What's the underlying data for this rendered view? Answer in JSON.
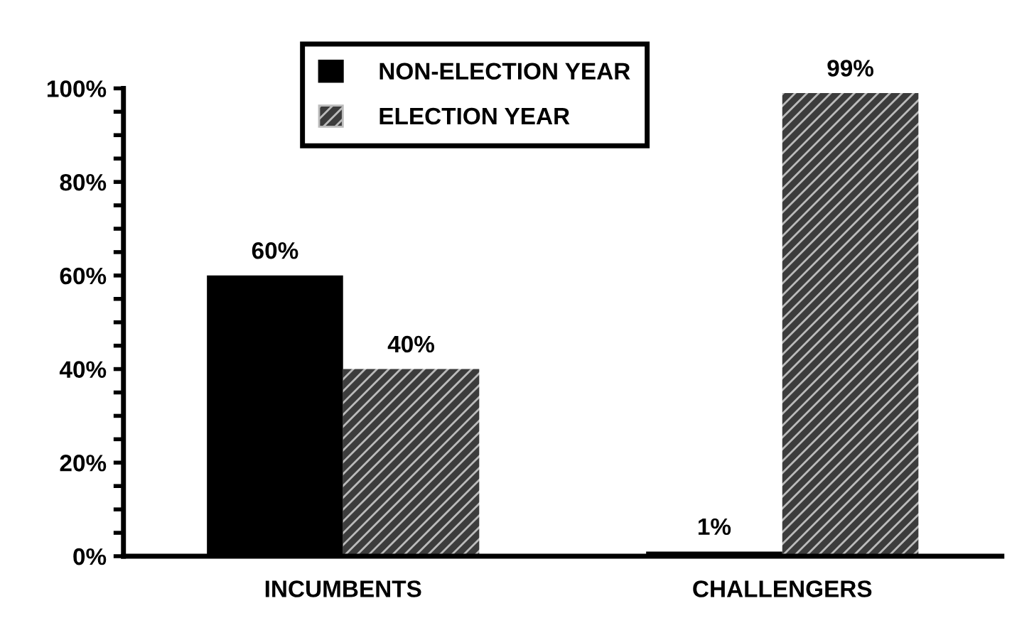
{
  "chart_data": {
    "type": "bar",
    "categories": [
      "INCUMBENTS",
      "CHALLENGERS"
    ],
    "series": [
      {
        "name": "NON-ELECTION YEAR",
        "color": "#000000",
        "values": [
          60,
          1
        ],
        "value_labels": [
          "60%",
          "1%"
        ]
      },
      {
        "name": "ELECTION YEAR",
        "color": "#3c3c3c",
        "values": [
          40,
          99
        ],
        "value_labels": [
          "40%",
          "99%"
        ]
      }
    ],
    "ylim": [
      0,
      100
    ],
    "yticks": [
      {
        "value": 0,
        "label": "0%"
      },
      {
        "value": 5,
        "label": null
      },
      {
        "value": 10,
        "label": null
      },
      {
        "value": 15,
        "label": null
      },
      {
        "value": 20,
        "label": "20%"
      },
      {
        "value": 25,
        "label": null
      },
      {
        "value": 30,
        "label": null
      },
      {
        "value": 35,
        "label": null
      },
      {
        "value": 40,
        "label": "40%"
      },
      {
        "value": 45,
        "label": null
      },
      {
        "value": 50,
        "label": null
      },
      {
        "value": 55,
        "label": null
      },
      {
        "value": 60,
        "label": "60%"
      },
      {
        "value": 65,
        "label": null
      },
      {
        "value": 70,
        "label": null
      },
      {
        "value": 75,
        "label": null
      },
      {
        "value": 80,
        "label": "80%"
      },
      {
        "value": 85,
        "label": null
      },
      {
        "value": 90,
        "label": null
      },
      {
        "value": 95,
        "label": null
      },
      {
        "value": 100,
        "label": "100%"
      }
    ],
    "legend": "top",
    "grid": false
  }
}
